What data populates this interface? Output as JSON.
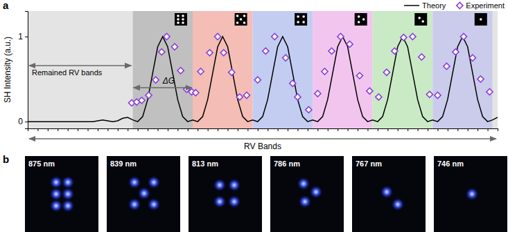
{
  "chart_data": {
    "type": "line",
    "xlabel": "RV Bands",
    "ylabel": "SH Intensity (a.u.)",
    "xlim": [
      0,
      47
    ],
    "ylim": [
      -0.08,
      1.3
    ],
    "xticks": [
      0,
      1,
      2,
      3,
      4,
      5,
      6,
      7,
      8,
      9,
      10,
      11,
      12,
      13,
      14,
      15,
      16,
      17,
      18,
      19,
      20,
      21,
      22,
      23,
      24,
      25,
      26,
      27,
      28,
      29,
      30,
      31,
      32,
      33,
      34,
      35,
      36,
      37,
      38,
      39,
      40,
      41,
      42,
      43,
      44,
      45,
      46,
      47
    ],
    "yticks": [
      0,
      1
    ],
    "tick_labels": "y",
    "grid": false,
    "legend": "top-right",
    "bands": [
      {
        "start": 0,
        "end": 10.5,
        "color": "#e4e4e4"
      },
      {
        "start": 10.5,
        "end": 16.5,
        "color": "#c0c0c0"
      },
      {
        "start": 16.5,
        "end": 22.5,
        "color": "#f4bdb5"
      },
      {
        "start": 22.5,
        "end": 28.5,
        "color": "#c2cdf1"
      },
      {
        "start": 28.5,
        "end": 34.5,
        "color": "#f2c5ef"
      },
      {
        "start": 34.5,
        "end": 40.5,
        "color": "#cae9c5"
      },
      {
        "start": 40.5,
        "end": 46.5,
        "color": "#cbcbec"
      },
      {
        "start": 46.5,
        "end": 47,
        "color": "#e4e4e4"
      }
    ],
    "annotations": [
      {
        "text": "Remained RV bands"
      },
      {
        "text": "ΔG"
      }
    ],
    "series": [
      {
        "name": "Theory",
        "type": "line",
        "color": "#000000",
        "line_style": "solid",
        "x": [
          0,
          0.5,
          1,
          1.5,
          2,
          2.5,
          3,
          3.5,
          4,
          4.5,
          5,
          5.5,
          6,
          6.5,
          7,
          7.5,
          8,
          8.5,
          9,
          9.5,
          10,
          10.5,
          11,
          11.5,
          12,
          12.5,
          13,
          13.5,
          14,
          14.5,
          15,
          15.5,
          16,
          16.5,
          17,
          17.5,
          18,
          18.5,
          19,
          19.5,
          20,
          20.5,
          21,
          21.5,
          22,
          22.5,
          23,
          23.5,
          24,
          24.5,
          25,
          25.5,
          26,
          26.5,
          27,
          27.5,
          28,
          28.5,
          29,
          29.5,
          30,
          30.5,
          31,
          31.5,
          32,
          32.5,
          33,
          33.5,
          34,
          34.5,
          35,
          35.5,
          36,
          36.5,
          37,
          37.5,
          38,
          38.5,
          39,
          39.5,
          40,
          40.5,
          41,
          41.5,
          42,
          42.5,
          43,
          43.5,
          44,
          44.5,
          45,
          45.5,
          46,
          46.5,
          47
        ],
        "values": [
          0,
          0,
          0,
          0,
          0,
          0,
          0,
          0,
          0,
          0,
          0,
          0,
          0,
          0,
          0.01,
          0.02,
          0.01,
          0,
          0.01,
          0.04,
          0.05,
          0.02,
          0,
          0.06,
          0.26,
          0.57,
          0.88,
          1,
          0.88,
          0.57,
          0.26,
          0.06,
          0,
          0.02,
          0,
          0.06,
          0.26,
          0.57,
          0.88,
          1,
          0.88,
          0.57,
          0.26,
          0.06,
          0,
          0.02,
          0,
          0.06,
          0.26,
          0.57,
          0.88,
          1,
          0.88,
          0.57,
          0.26,
          0.06,
          0,
          0.02,
          0,
          0.06,
          0.26,
          0.57,
          0.88,
          1,
          0.88,
          0.57,
          0.26,
          0.06,
          0,
          0.02,
          0,
          0.06,
          0.26,
          0.57,
          0.88,
          1,
          0.88,
          0.57,
          0.26,
          0.06,
          0,
          0.02,
          0,
          0.06,
          0.26,
          0.57,
          0.88,
          1,
          0.88,
          0.57,
          0.26,
          0.06,
          0,
          0.02,
          0.05
        ]
      },
      {
        "name": "Experiment",
        "type": "scatter",
        "color": "#8b3fd9",
        "marker": "diamond",
        "x": [
          10.4,
          10.9,
          11.4,
          12.1,
          12.8,
          13.4,
          13.9,
          14.7,
          15.3,
          15.9,
          16.4,
          16.8,
          17.3,
          18.2,
          19,
          19.6,
          20.4,
          21.2,
          21.9,
          23,
          23.8,
          24.7,
          25.8,
          26.5,
          27,
          28.1,
          29,
          29.7,
          30.4,
          31.3,
          32.2,
          33.2,
          34.2,
          35.1,
          35.9,
          36.7,
          37.6,
          38.5,
          39.4,
          40.2,
          41,
          41.9,
          42.8,
          43.6,
          44.5,
          45.3,
          46.2
        ],
        "values": [
          0.22,
          0.23,
          0.25,
          0.31,
          0.49,
          0.82,
          1,
          0.88,
          0.6,
          0.38,
          0.35,
          0.34,
          0.59,
          0.81,
          1,
          0.81,
          0.58,
          0.29,
          0.31,
          0.49,
          0.83,
          1,
          0.75,
          0.45,
          0.29,
          0.14,
          0.33,
          0.59,
          0.83,
          1,
          0.91,
          0.54,
          0.36,
          0.29,
          0.58,
          0.83,
          0.99,
          1,
          0.76,
          0.32,
          0.31,
          0.65,
          0.82,
          1,
          0.75,
          0.5,
          0.35
        ]
      }
    ]
  },
  "panel_labels": [
    "a",
    "b"
  ],
  "images": {
    "labels": [
      "875 nm",
      "839 nm",
      "813 nm",
      "786 nm",
      "767 nm",
      "746 nm"
    ]
  }
}
